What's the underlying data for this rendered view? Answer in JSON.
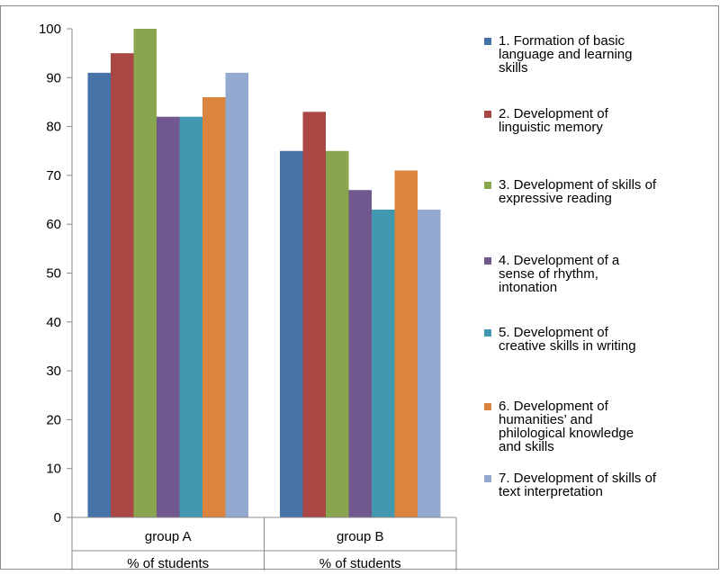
{
  "chart_data": {
    "type": "bar",
    "title": "",
    "xlabel": "",
    "ylabel": "",
    "ylim": [
      0,
      100
    ],
    "yticks": [
      0,
      10,
      20,
      30,
      40,
      50,
      60,
      70,
      80,
      90,
      100
    ],
    "grid": false,
    "legend_position": "right",
    "categories": [
      "group A",
      "group B"
    ],
    "category_sublabel": "% of students",
    "series": [
      {
        "name": "1. Formation of basic language and learning skills",
        "legend_lines": [
          "1. Formation of basic",
          "language and learning",
          "skills"
        ],
        "color": "#4572A7",
        "values": [
          91,
          75
        ]
      },
      {
        "name": "2. Development of linguistic memory",
        "legend_lines": [
          "2. Development of",
          "linguistic memory"
        ],
        "color": "#AA4643",
        "values": [
          95,
          83
        ]
      },
      {
        "name": "3. Development of skills of expressive reading",
        "legend_lines": [
          "3. Development of skills of",
          "expressive reading"
        ],
        "color": "#89A54E",
        "values": [
          100,
          75
        ]
      },
      {
        "name": "4. Development of a sense of rhythm, intonation",
        "legend_lines": [
          "4. Development of a",
          "sense of rhythm,",
          "intonation"
        ],
        "color": "#71588F",
        "values": [
          82,
          67
        ]
      },
      {
        "name": "5. Development of creative skills in writing",
        "legend_lines": [
          "5. Development of",
          "creative skills in writing"
        ],
        "color": "#4198AF",
        "values": [
          82,
          63
        ]
      },
      {
        "name": "6. Development of humanities' and philological knowledge and skills",
        "legend_lines": [
          "6. Development of",
          "humanities’ and",
          "philological knowledge",
          "and skills"
        ],
        "color": "#DB843D",
        "values": [
          86,
          71
        ]
      },
      {
        "name": "7. Development of skills of text interpretation",
        "legend_lines": [
          "7. Development of skills of",
          "text interpretation"
        ],
        "color": "#93A9CF",
        "values": [
          91,
          63
        ]
      }
    ]
  }
}
